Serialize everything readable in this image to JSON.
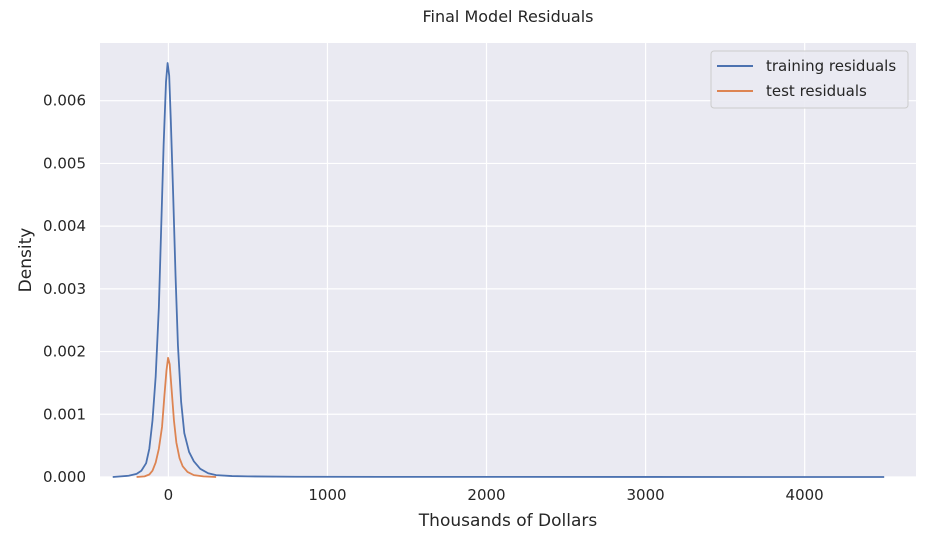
{
  "chart_data": {
    "type": "line",
    "title": "Final Model Residuals",
    "xlabel": "Thousands of Dollars",
    "ylabel": "Density",
    "xlim": [
      -430,
      4700
    ],
    "ylim": [
      0,
      0.00692
    ],
    "xticks": [
      {
        "value": 0,
        "label": "0"
      },
      {
        "value": 1000,
        "label": "1000"
      },
      {
        "value": 2000,
        "label": "2000"
      },
      {
        "value": 3000,
        "label": "3000"
      },
      {
        "value": 4000,
        "label": "4000"
      }
    ],
    "yticks": [
      {
        "value": 0,
        "label": "0.000"
      },
      {
        "value": 0.001,
        "label": "0.001"
      },
      {
        "value": 0.002,
        "label": "0.002"
      },
      {
        "value": 0.003,
        "label": "0.003"
      },
      {
        "value": 0.004,
        "label": "0.004"
      },
      {
        "value": 0.005,
        "label": "0.005"
      },
      {
        "value": 0.006,
        "label": "0.006"
      }
    ],
    "grid": true,
    "background": "#eaeaf2",
    "legend_position": "top-right",
    "series": [
      {
        "name": "training residuals",
        "color": "#4c72b0",
        "points": [
          [
            -350,
            0
          ],
          [
            -300,
            1e-05
          ],
          [
            -250,
            2e-05
          ],
          [
            -200,
            5e-05
          ],
          [
            -170,
            0.0001
          ],
          [
            -140,
            0.00022
          ],
          [
            -120,
            0.00045
          ],
          [
            -100,
            0.0009
          ],
          [
            -80,
            0.0016
          ],
          [
            -60,
            0.0027
          ],
          [
            -45,
            0.004
          ],
          [
            -30,
            0.0053
          ],
          [
            -15,
            0.0063
          ],
          [
            -5,
            0.0066
          ],
          [
            5,
            0.0064
          ],
          [
            15,
            0.0057
          ],
          [
            30,
            0.0045
          ],
          [
            45,
            0.0032
          ],
          [
            60,
            0.0021
          ],
          [
            80,
            0.0012
          ],
          [
            100,
            0.0007
          ],
          [
            130,
            0.0004
          ],
          [
            160,
            0.00025
          ],
          [
            200,
            0.00013
          ],
          [
            250,
            6e-05
          ],
          [
            300,
            3e-05
          ],
          [
            400,
            1.5e-05
          ],
          [
            500,
            1e-05
          ],
          [
            800,
            4e-06
          ],
          [
            1500,
            2e-06
          ],
          [
            3000,
            1e-06
          ],
          [
            4500,
            0
          ]
        ]
      },
      {
        "name": "test residuals",
        "color": "#dd8452",
        "points": [
          [
            -200,
            0
          ],
          [
            -150,
            1e-05
          ],
          [
            -120,
            4e-05
          ],
          [
            -100,
            0.0001
          ],
          [
            -80,
            0.00023
          ],
          [
            -60,
            0.00045
          ],
          [
            -40,
            0.0008
          ],
          [
            -25,
            0.0013
          ],
          [
            -12,
            0.0017
          ],
          [
            -2,
            0.0019
          ],
          [
            8,
            0.0018
          ],
          [
            20,
            0.0014
          ],
          [
            35,
            0.0009
          ],
          [
            50,
            0.00055
          ],
          [
            70,
            0.0003
          ],
          [
            90,
            0.00017
          ],
          [
            120,
            8e-05
          ],
          [
            160,
            3e-05
          ],
          [
            220,
            1e-05
          ],
          [
            300,
            0
          ]
        ]
      }
    ]
  }
}
